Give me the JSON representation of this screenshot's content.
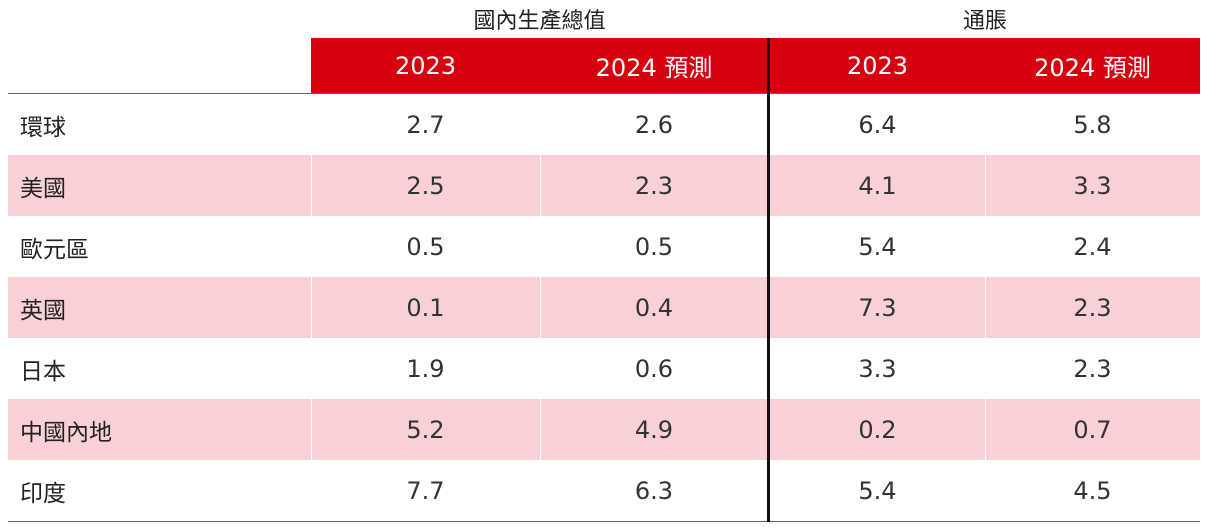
{
  "headers": {
    "gdp_group": "國內生產總值",
    "inflation_group": "通脹",
    "gdp_2023": "2023",
    "gdp_2024": "2024 預測",
    "inflation_2023": "2023",
    "inflation_2024": "2024 預測"
  },
  "colors": {
    "header_band": "#d7000f",
    "shaded_row": "#f8d0d5"
  },
  "rows": [
    {
      "label": "環球",
      "gdp_2023": "2.7",
      "gdp_2024": "2.6",
      "inflation_2023": "6.4",
      "inflation_2024": "5.8"
    },
    {
      "label": "美國",
      "gdp_2023": "2.5",
      "gdp_2024": "2.3",
      "inflation_2023": "4.1",
      "inflation_2024": "3.3"
    },
    {
      "label": "歐元區",
      "gdp_2023": "0.5",
      "gdp_2024": "0.5",
      "inflation_2023": "5.4",
      "inflation_2024": "2.4"
    },
    {
      "label": "英國",
      "gdp_2023": "0.1",
      "gdp_2024": "0.4",
      "inflation_2023": "7.3",
      "inflation_2024": "2.3"
    },
    {
      "label": "日本",
      "gdp_2023": "1.9",
      "gdp_2024": "0.6",
      "inflation_2023": "3.3",
      "inflation_2024": "2.3"
    },
    {
      "label": "中國內地",
      "gdp_2023": "5.2",
      "gdp_2024": "4.9",
      "inflation_2023": "0.2",
      "inflation_2024": "0.7"
    },
    {
      "label": "印度",
      "gdp_2023": "7.7",
      "gdp_2024": "6.3",
      "inflation_2023": "5.4",
      "inflation_2024": "4.5"
    }
  ]
}
